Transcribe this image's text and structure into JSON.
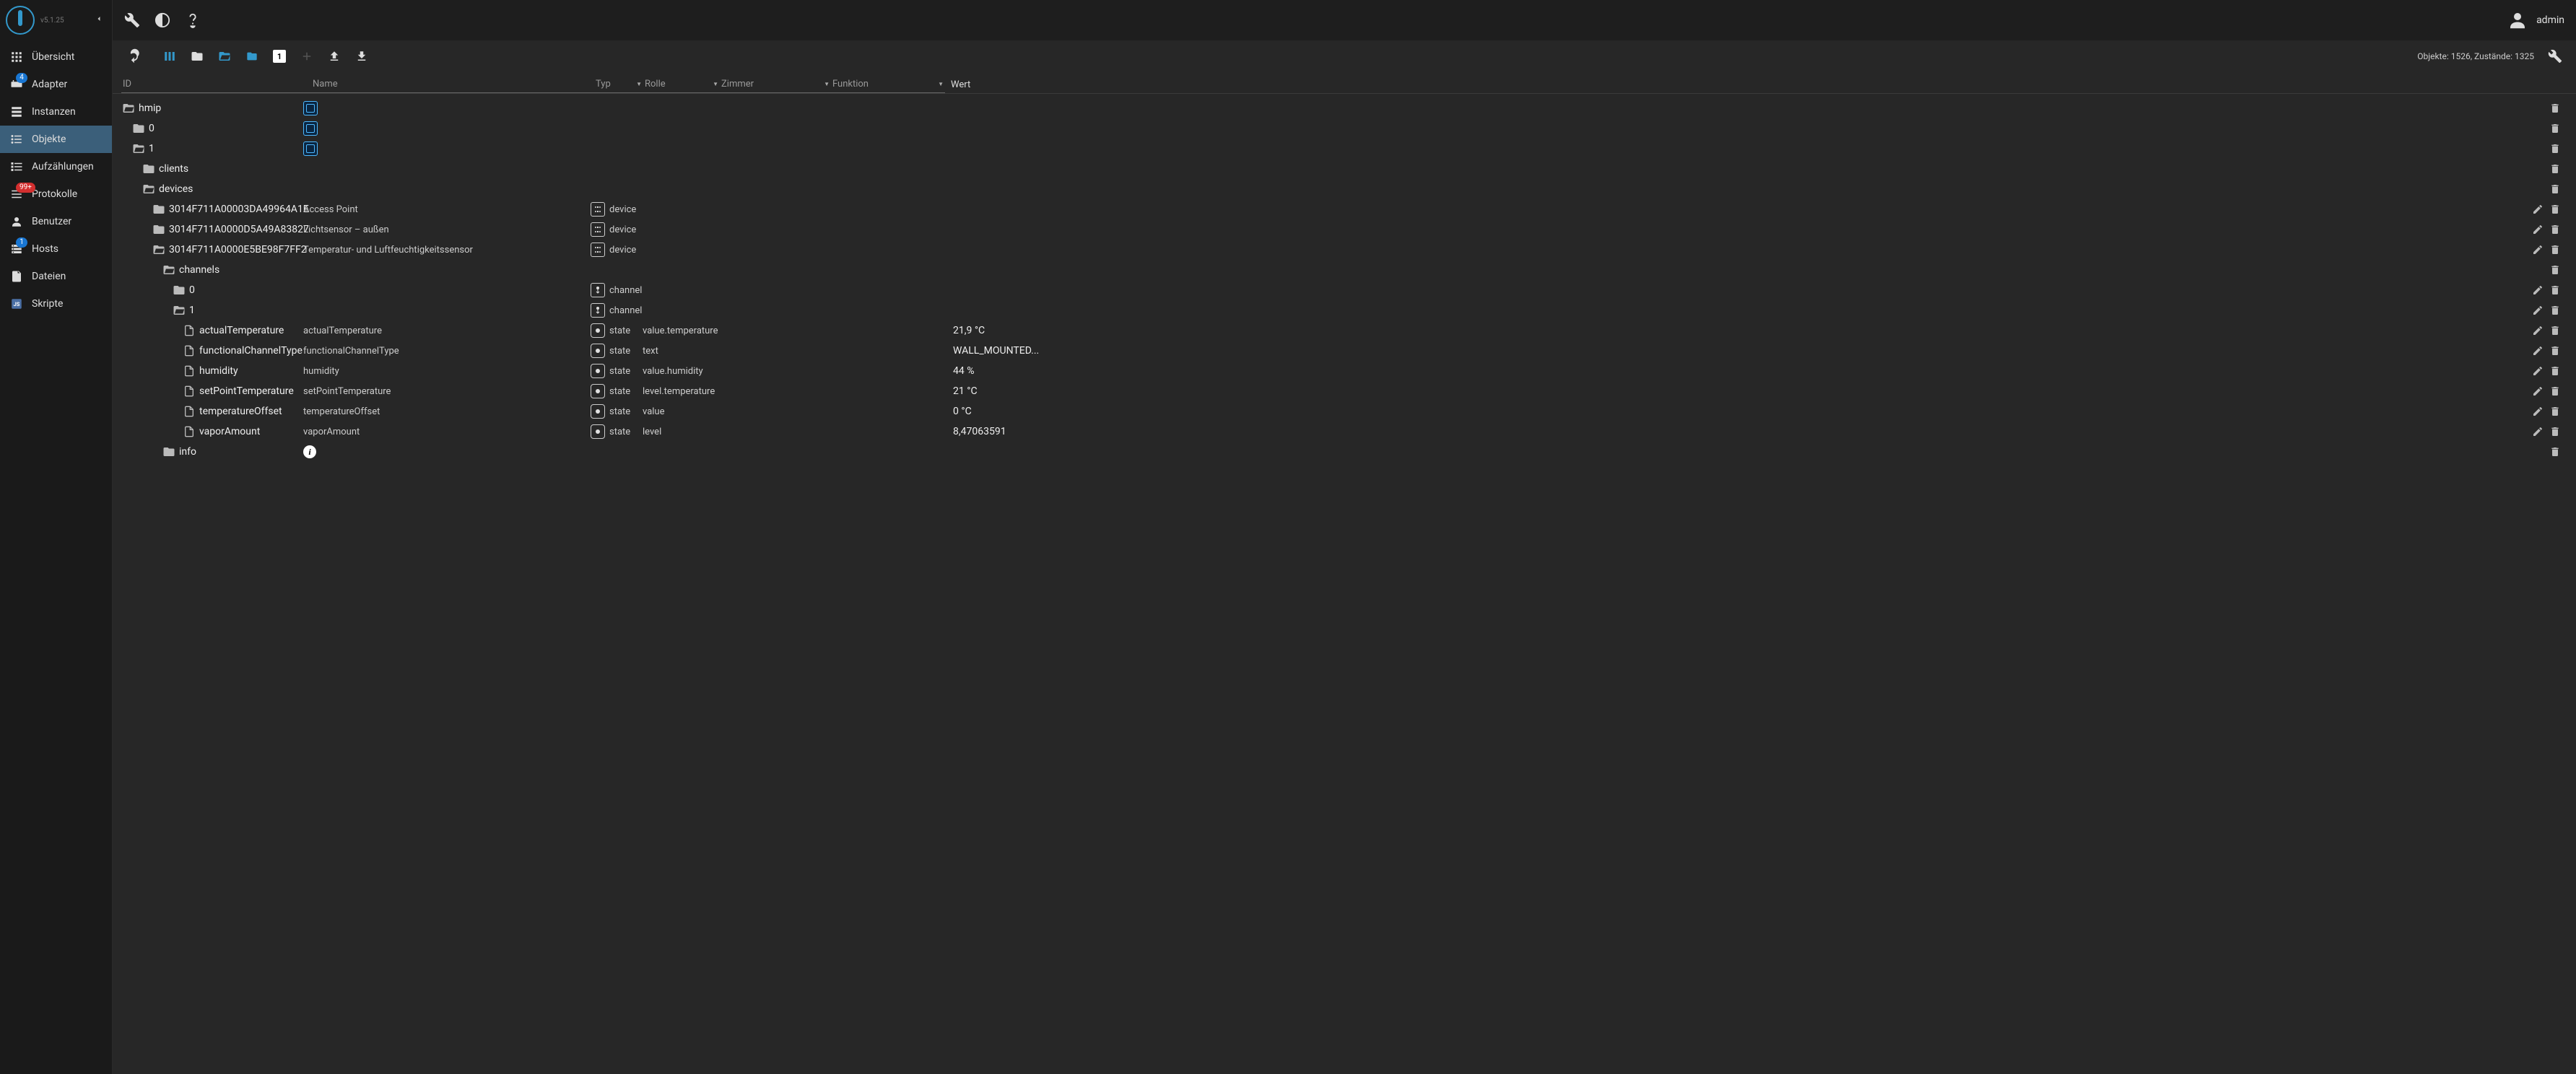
{
  "version": "v5.1.25",
  "user": "admin",
  "sidebar": [
    {
      "icon": "grid",
      "label": "Übersicht",
      "active": false
    },
    {
      "icon": "adapter",
      "label": "Adapter",
      "badge": "4",
      "active": false
    },
    {
      "icon": "instances",
      "label": "Instanzen",
      "active": false
    },
    {
      "icon": "list",
      "label": "Objekte",
      "active": true
    },
    {
      "icon": "enum",
      "label": "Aufzählungen",
      "active": false
    },
    {
      "icon": "log",
      "label": "Protokolle",
      "badge": "99+",
      "badgeColor": "red",
      "active": false
    },
    {
      "icon": "user",
      "label": "Benutzer",
      "active": false
    },
    {
      "icon": "host",
      "label": "Hosts",
      "badge": "1",
      "active": false
    },
    {
      "icon": "files",
      "label": "Dateien",
      "active": false
    },
    {
      "icon": "script",
      "label": "Skripte",
      "active": false
    }
  ],
  "stats": "Objekte: 1526, Zustände: 1325",
  "filters": {
    "id": "ID",
    "name": "Name",
    "typ": "Typ",
    "rolle": "Rolle",
    "zimmer": "Zimmer",
    "funktion": "Funktion",
    "wert": "Wert"
  },
  "rows": [
    {
      "indent": 0,
      "open": true,
      "icon": "folder-open",
      "id": "hmip",
      "adapterIcon": true,
      "actions": [
        "delete"
      ]
    },
    {
      "indent": 1,
      "open": false,
      "icon": "folder",
      "id": "0",
      "adapterIcon": true,
      "actions": [
        "delete"
      ]
    },
    {
      "indent": 1,
      "open": true,
      "icon": "folder-open",
      "id": "1",
      "adapterIcon": true,
      "actions": [
        "delete"
      ]
    },
    {
      "indent": 2,
      "open": false,
      "icon": "folder",
      "id": "clients",
      "actions": [
        "delete"
      ]
    },
    {
      "indent": 2,
      "open": true,
      "icon": "folder-open",
      "id": "devices",
      "actions": [
        "delete"
      ]
    },
    {
      "indent": 3,
      "open": false,
      "icon": "folder",
      "id": "3014F711A00003DA49964A1E",
      "name": "Access Point",
      "typIcon": "device",
      "typ": "device",
      "actions": [
        "edit",
        "delete"
      ]
    },
    {
      "indent": 3,
      "open": false,
      "icon": "folder",
      "id": "3014F711A0000D5A49A83827",
      "name": "Lichtsensor – außen",
      "typIcon": "device",
      "typ": "device",
      "actions": [
        "edit",
        "delete"
      ]
    },
    {
      "indent": 3,
      "open": true,
      "icon": "folder-open",
      "id": "3014F711A0000E5BE98F7FF2",
      "name": "Temperatur- und Luftfeuchtigkeitssensor",
      "typIcon": "device",
      "typ": "device",
      "actions": [
        "edit",
        "delete"
      ]
    },
    {
      "indent": 4,
      "open": true,
      "icon": "folder-open",
      "id": "channels",
      "actions": [
        "delete"
      ]
    },
    {
      "indent": 5,
      "open": false,
      "icon": "folder",
      "id": "0",
      "typIcon": "channel",
      "typ": "channel",
      "actions": [
        "edit",
        "delete"
      ]
    },
    {
      "indent": 5,
      "open": true,
      "icon": "folder-open",
      "id": "1",
      "typIcon": "channel",
      "typ": "channel",
      "actions": [
        "edit",
        "delete"
      ]
    },
    {
      "indent": 6,
      "icon": "file",
      "id": "actualTemperature",
      "name": "actualTemperature",
      "typIcon": "state",
      "typ": "state",
      "role": "value.temperature",
      "val": "21,9 °C",
      "actions": [
        "edit",
        "delete"
      ]
    },
    {
      "indent": 6,
      "icon": "file",
      "id": "functionalChannelType",
      "name": "functionalChannelType",
      "typIcon": "state",
      "typ": "state",
      "role": "text",
      "val": "WALL_MOUNTED...",
      "actions": [
        "edit",
        "delete"
      ]
    },
    {
      "indent": 6,
      "icon": "file",
      "id": "humidity",
      "name": "humidity",
      "typIcon": "state",
      "typ": "state",
      "role": "value.humidity",
      "val": "44 %",
      "actions": [
        "edit",
        "delete"
      ]
    },
    {
      "indent": 6,
      "icon": "file",
      "id": "setPointTemperature",
      "name": "setPointTemperature",
      "typIcon": "state",
      "typ": "state",
      "role": "level.temperature",
      "val": "21 °C",
      "actions": [
        "edit",
        "delete"
      ]
    },
    {
      "indent": 6,
      "icon": "file",
      "id": "temperatureOffset",
      "name": "temperatureOffset",
      "typIcon": "state",
      "typ": "state",
      "role": "value",
      "val": "0 °C",
      "actions": [
        "edit",
        "delete"
      ]
    },
    {
      "indent": 6,
      "icon": "file",
      "id": "vaporAmount",
      "name": "vaporAmount",
      "typIcon": "state",
      "typ": "state",
      "role": "level",
      "val": "8,47063591",
      "actions": [
        "edit",
        "delete"
      ]
    },
    {
      "indent": 4,
      "open": false,
      "icon": "folder",
      "id": "info",
      "infoIcon": true,
      "actions": [
        "delete"
      ]
    }
  ]
}
